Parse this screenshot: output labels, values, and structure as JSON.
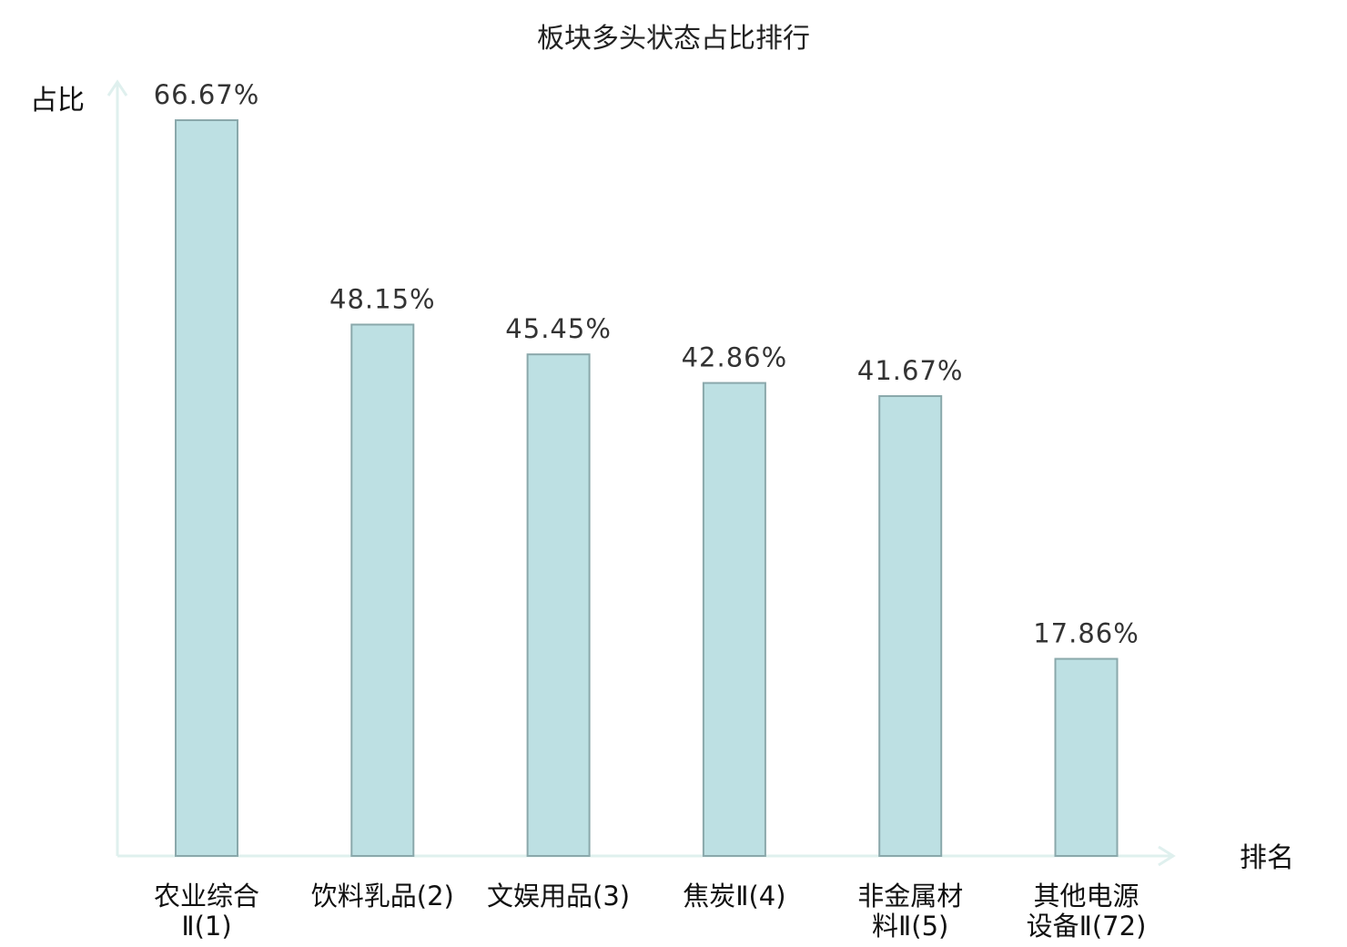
{
  "chart_data": {
    "type": "bar",
    "title": "板块多头状态占比排行",
    "ylabel": "占比",
    "xlabel": "排名",
    "ylim": [
      0,
      70
    ],
    "categories": [
      [
        "农业综合",
        "Ⅱ(1)"
      ],
      [
        "饮料乳品(2)"
      ],
      [
        "文娱用品(3)"
      ],
      [
        "焦炭Ⅱ(4)"
      ],
      [
        "非金属材",
        "料Ⅱ(5)"
      ],
      [
        "其他电源",
        "设备Ⅱ(72)"
      ]
    ],
    "values": [
      66.67,
      48.15,
      45.45,
      42.86,
      41.67,
      17.86
    ],
    "value_labels": [
      "66.67%",
      "48.15%",
      "45.45%",
      "42.86%",
      "41.67%",
      "17.86%"
    ],
    "highlight_index": 5,
    "colors": {
      "bar_fill": "#bde0e3",
      "bar_stroke": "#8aa8ab",
      "axis": "#dff0ee",
      "highlight_text": "#e01010",
      "text": "#111111"
    }
  }
}
